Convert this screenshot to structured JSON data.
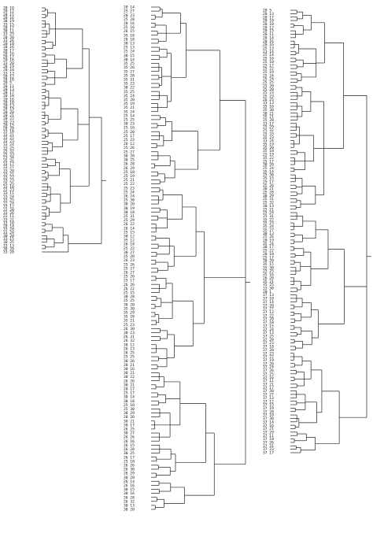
{
  "figure": {
    "dendrograms": [
      {
        "id": "left-tree",
        "leaves": [
          "20 10",
          "20 12",
          "20 15",
          "20 16",
          "30 19",
          "33 15",
          "20 17",
          "30 11",
          "33 25",
          "20 20",
          "33 26",
          "20 10",
          "20 16",
          "30 17",
          "20 16",
          "20 17",
          "20 18",
          "33 20",
          "20 19",
          "20 10",
          "33 13",
          "20 12",
          "20 10",
          "20 5",
          "20 11",
          "20 13",
          "20 17",
          "20 18",
          "20 16",
          "20 10",
          "20 13",
          "20 19",
          "20 20",
          "20 21",
          "20 22",
          "20 23",
          "20 15",
          "20 20",
          "33 18",
          "33 21",
          "33 22",
          "33 23",
          "33 24",
          "33 25",
          "25 32",
          "25 33",
          "23 34",
          "25 35",
          "33 17",
          "33 27",
          "33 20",
          "33 21",
          "33 22",
          "33 23",
          "25 25",
          "33 10",
          "22 23",
          "33 11",
          "33 24",
          "33 25",
          "22 24",
          "33 12",
          "22 20",
          "33 26",
          "22 11",
          "33 21",
          "33 10",
          "20 14",
          "33 28",
          "33 29",
          "30 20",
          "33 15",
          "30 25",
          "33 13",
          "30 20",
          "33 20"
        ]
      },
      {
        "id": "middle-tree",
        "leaves": [
          "20 14",
          "25 27",
          "20 23",
          "25 28",
          "20 16",
          "25 16",
          "26 15",
          "35 18",
          "20 18",
          "30 13",
          "25 13",
          "25 24",
          "30 15",
          "30 14",
          "35 25",
          "35 26",
          "35 27",
          "35 28",
          "35 31",
          "35 23",
          "30 22",
          "35 25",
          "35 24",
          "35 20",
          "35 19",
          "35 21",
          "35 24",
          "25 14",
          "25 25",
          "30 23",
          "25 16",
          "25 20",
          "25 17",
          "25 23",
          "26 12",
          "25 26",
          "25 27",
          "30 28",
          "30 25",
          "26 20",
          "26 29",
          "25 18",
          "25 19",
          "25 21",
          "25 22",
          "25 23",
          "25 24",
          "26 24",
          "25 30",
          "30 20",
          "30 19",
          "30 18",
          "25 31",
          "25 29",
          "26 22",
          "26 14",
          "25 15",
          "30 12",
          "35 12",
          "26 18",
          "25 22",
          "30 27",
          "25 28",
          "26 23",
          "25 26",
          "25 27",
          "26 27",
          "25 20",
          "25 17",
          "26 26",
          "26 22",
          "25 15",
          "30 28",
          "25 25",
          "30 20",
          "35 30",
          "35 29",
          "35 20",
          "35 21",
          "25 23",
          "26 30",
          "30 23",
          "26 31",
          "26 32",
          "30 12",
          "26 13",
          "26 25",
          "25 25",
          "30 26",
          "20 21",
          "30 16",
          "30 21",
          "30 22",
          "26 26",
          "30 21",
          "20 17",
          "25 17",
          "30 14",
          "30 18",
          "25 18",
          "25 30",
          "30 29",
          "20 20",
          "30 21",
          "30 17",
          "26 25",
          "30 27",
          "26 26",
          "26 16",
          "26 15",
          "26 28",
          "30 25",
          "26 17",
          "25 18",
          "26 26",
          "26 30",
          "26 29",
          "30 28",
          "26 14",
          "26 16",
          "30 15",
          "30 16",
          "26 28",
          "26 32",
          "30 13",
          "30 20"
        ]
      },
      {
        "id": "right-tree",
        "leaves": [
          "20 5",
          "20 13",
          "20 17",
          "20 18",
          "20 10",
          "20 12",
          "20 15",
          "20 11",
          "20 14",
          "20 16",
          "20 16",
          "25 13",
          "23 14",
          "25 14",
          "25 16",
          "25 18",
          "25 17",
          "25 22",
          "25 19",
          "25 24",
          "25 24",
          "25 25",
          "25 20",
          "25 20",
          "25 23",
          "25 23",
          "26 25",
          "33 13",
          "35 16",
          "25 30",
          "30 21",
          "35 21",
          "25 28",
          "33 17",
          "25 29",
          "25 32",
          "25 33",
          "35 23",
          "33 24",
          "35 19",
          "35 20",
          "35 18",
          "25 19",
          "35 22",
          "25 17",
          "30 20",
          "25 24",
          "35 14",
          "25 30",
          "35 15",
          "25 17",
          "25 26",
          "30 21",
          "25 28",
          "30 29",
          "25 31",
          "25 32",
          "30 13",
          "25 21",
          "25 24",
          "25 31",
          "35 22",
          "35 23",
          "35 24",
          "35 27",
          "30 13",
          "25 26",
          "20 19",
          "35 24",
          "30 17",
          "25 22",
          "20 18",
          "25 17",
          "30 20",
          "35 15",
          "35 30",
          "25 25",
          "35 16",
          "26 20",
          "35 21",
          "35 25",
          "33 30",
          "20 1",
          "37 13",
          "37 10",
          "37 14",
          "37 20",
          "37 27",
          "37 12",
          "37 22",
          "37 20",
          "37 18",
          "37 15",
          "37 24",
          "37 13",
          "37 25",
          "37 29",
          "37 23",
          "37 18",
          "37 28",
          "37 23",
          "37 22",
          "37 19",
          "37 20",
          "37 24",
          "37 26",
          "37 25",
          "37 16",
          "37 11",
          "37 21",
          "37 17",
          "37 30",
          "37 27",
          "37 13",
          "37 12",
          "37 15",
          "37 19",
          "37 28",
          "37 10",
          "37 30",
          "37 14",
          "37 16",
          "37 21",
          "37 29",
          "37 11",
          "37 18",
          "37 26",
          "37 31",
          "37 23",
          "37 17"
        ]
      }
    ]
  },
  "style": {
    "line_color": "#222222",
    "text_color": "#111111",
    "background": "#ffffff"
  }
}
